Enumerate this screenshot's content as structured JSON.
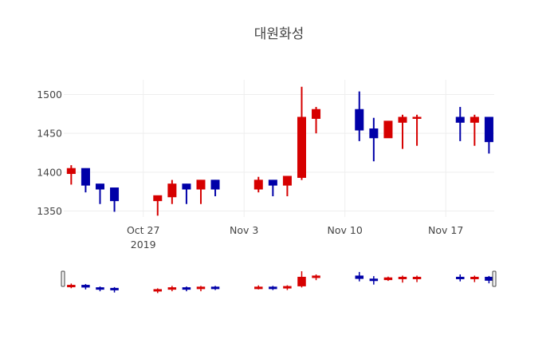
{
  "chart_data": {
    "type": "candlestick",
    "title": "대원화성",
    "xlabel": "",
    "ylabel": "",
    "ylim": [
      1330,
      1520
    ],
    "y_ticks": [
      1350,
      1400,
      1450,
      1500
    ],
    "x_ticks": [
      {
        "date": "2019-10-27",
        "label": "Oct 27",
        "sublabel": "2019"
      },
      {
        "date": "2019-11-03",
        "label": "Nov 3",
        "sublabel": ""
      },
      {
        "date": "2019-11-10",
        "label": "Nov 10",
        "sublabel": ""
      },
      {
        "date": "2019-11-17",
        "label": "Nov 17",
        "sublabel": ""
      }
    ],
    "x_range": [
      "2019-10-21",
      "2019-11-21"
    ],
    "grid": true,
    "legend": "none",
    "range_slider": true,
    "increasing_color": "#d60000",
    "decreasing_color": "#0000a8",
    "candles": [
      {
        "date": "2019-10-22",
        "open": 1398,
        "high": 1409,
        "low": 1384,
        "close": 1405
      },
      {
        "date": "2019-10-23",
        "open": 1405,
        "high": 1405,
        "low": 1374,
        "close": 1383
      },
      {
        "date": "2019-10-24",
        "open": 1385,
        "high": 1385,
        "low": 1359,
        "close": 1378
      },
      {
        "date": "2019-10-25",
        "open": 1380,
        "high": 1380,
        "low": 1349,
        "close": 1363
      },
      {
        "date": "2019-10-28",
        "open": 1363,
        "high": 1370,
        "low": 1344,
        "close": 1370
      },
      {
        "date": "2019-10-29",
        "open": 1368,
        "high": 1390,
        "low": 1359,
        "close": 1385
      },
      {
        "date": "2019-10-30",
        "open": 1385,
        "high": 1385,
        "low": 1359,
        "close": 1378
      },
      {
        "date": "2019-10-31",
        "open": 1378,
        "high": 1390,
        "low": 1359,
        "close": 1390
      },
      {
        "date": "2019-11-01",
        "open": 1390,
        "high": 1390,
        "low": 1369,
        "close": 1378
      },
      {
        "date": "2019-11-04",
        "open": 1378,
        "high": 1394,
        "low": 1374,
        "close": 1390
      },
      {
        "date": "2019-11-05",
        "open": 1390,
        "high": 1390,
        "low": 1369,
        "close": 1383
      },
      {
        "date": "2019-11-06",
        "open": 1383,
        "high": 1395,
        "low": 1369,
        "close": 1395
      },
      {
        "date": "2019-11-07",
        "open": 1393,
        "high": 1510,
        "low": 1390,
        "close": 1471
      },
      {
        "date": "2019-11-08",
        "open": 1469,
        "high": 1484,
        "low": 1450,
        "close": 1481
      },
      {
        "date": "2019-11-11",
        "open": 1481,
        "high": 1504,
        "low": 1440,
        "close": 1454
      },
      {
        "date": "2019-11-12",
        "open": 1456,
        "high": 1470,
        "low": 1414,
        "close": 1444
      },
      {
        "date": "2019-11-13",
        "open": 1444,
        "high": 1466,
        "low": 1444,
        "close": 1466
      },
      {
        "date": "2019-11-14",
        "open": 1464,
        "high": 1474,
        "low": 1430,
        "close": 1471
      },
      {
        "date": "2019-11-15",
        "open": 1469,
        "high": 1474,
        "low": 1434,
        "close": 1471
      },
      {
        "date": "2019-11-18",
        "open": 1471,
        "high": 1484,
        "low": 1440,
        "close": 1464
      },
      {
        "date": "2019-11-19",
        "open": 1464,
        "high": 1474,
        "low": 1434,
        "close": 1471
      },
      {
        "date": "2019-11-20",
        "open": 1471,
        "high": 1471,
        "low": 1424,
        "close": 1439
      }
    ]
  }
}
